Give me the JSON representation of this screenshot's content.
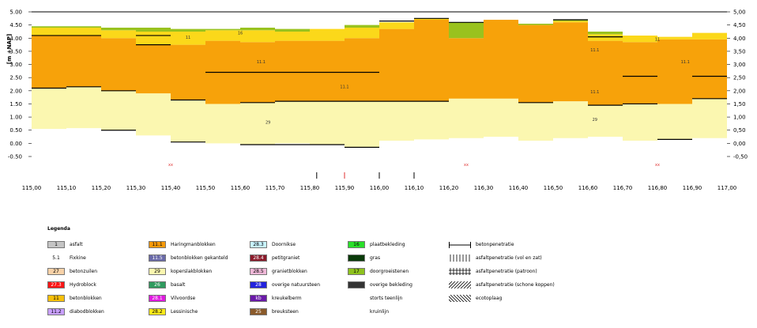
{
  "chart_data": {
    "type": "area",
    "ylabel": "[m +NAP]",
    "y_ticks_left": [
      "5.00",
      "4.50",
      "4.00",
      "3.50",
      "3.00",
      "2.50",
      "2.00",
      "1.50",
      "1.00",
      "0.50",
      "0.00",
      "-0.50"
    ],
    "y_ticks_right": [
      "5,00",
      "4,50",
      "4,00",
      "3,50",
      "3,00",
      "2,50",
      "2,00",
      "1,50",
      "1,00",
      "0,50",
      "0,00",
      "-0,50"
    ],
    "y_values": [
      5.0,
      4.5,
      4.0,
      3.5,
      3.0,
      2.5,
      2.0,
      1.5,
      1.0,
      0.5,
      0.0,
      -0.5
    ],
    "ylim": [
      -0.5,
      5.0
    ],
    "xlim": [
      115.0,
      117.0
    ],
    "x_ticks": [
      "115,00",
      "115,10",
      "115,20",
      "115,30",
      "115,40",
      "115,50",
      "115,60",
      "115,70",
      "115,80",
      "115,90",
      "116,00",
      "116,10",
      "116,20",
      "116,30",
      "116,40",
      "116,50",
      "116,60",
      "116,70",
      "116,80",
      "116,90",
      "117,00"
    ],
    "x_tick_values": [
      115.0,
      115.1,
      115.2,
      115.3,
      115.4,
      115.5,
      115.6,
      115.7,
      115.8,
      115.9,
      116.0,
      116.1,
      116.2,
      116.3,
      116.4,
      116.5,
      116.6,
      116.7,
      116.8,
      116.9,
      117.0
    ],
    "bin_edges": [
      115.0,
      115.1,
      115.2,
      115.3,
      115.4,
      115.5,
      115.6,
      115.7,
      115.8,
      115.9,
      116.0,
      116.1,
      116.2,
      116.3,
      116.4,
      116.5,
      116.6,
      116.7,
      116.8,
      116.9,
      117.0
    ],
    "series": [
      {
        "color": "#fbf7b0",
        "bottom": [
          0.55,
          0.58,
          0.5,
          0.3,
          0.05,
          0.0,
          -0.05,
          0.0,
          -0.05,
          -0.15,
          0.1,
          0.15,
          0.2,
          0.25,
          0.1,
          0.2,
          0.25,
          0.1,
          0.15,
          0.2
        ],
        "top": [
          2.1,
          2.15,
          2.0,
          1.9,
          1.65,
          1.5,
          1.55,
          1.6,
          1.6,
          1.6,
          1.6,
          1.6,
          1.7,
          1.7,
          1.55,
          1.6,
          1.45,
          1.5,
          1.5,
          1.7
        ]
      },
      {
        "color": "#f7a20a",
        "bottom": [
          2.1,
          2.15,
          2.0,
          1.9,
          1.65,
          1.5,
          1.55,
          1.6,
          1.6,
          1.6,
          1.6,
          1.6,
          1.7,
          1.7,
          1.55,
          1.6,
          1.45,
          1.5,
          1.5,
          1.7
        ],
        "top": [
          4.1,
          4.1,
          4.0,
          3.75,
          3.75,
          3.9,
          3.85,
          3.9,
          3.9,
          4.0,
          4.35,
          4.7,
          4.0,
          4.7,
          4.5,
          4.6,
          3.9,
          3.85,
          3.95,
          3.95
        ]
      },
      {
        "color": "#fbd81a",
        "bottom": [
          4.1,
          4.1,
          4.0,
          3.75,
          3.75,
          3.9,
          3.85,
          3.9,
          3.9,
          4.0,
          4.35,
          4.7,
          4.0,
          4.7,
          4.5,
          4.6,
          3.9,
          3.85,
          3.95,
          3.95
        ],
        "top": [
          4.4,
          4.4,
          4.3,
          4.25,
          4.25,
          4.3,
          4.3,
          4.25,
          4.35,
          4.4,
          4.6,
          4.75,
          4.0,
          4.7,
          4.5,
          4.65,
          4.15,
          4.1,
          4.05,
          4.2
        ]
      },
      {
        "color": "#99c21e",
        "bottom": [
          4.4,
          4.4,
          4.3,
          4.25,
          4.25,
          4.3,
          4.3,
          4.25,
          4.35,
          4.4,
          4.6,
          4.75,
          4.0,
          4.7,
          4.5,
          4.65,
          4.15,
          4.1,
          4.05,
          4.2
        ],
        "top": [
          4.45,
          4.45,
          4.4,
          4.4,
          4.35,
          4.35,
          4.4,
          4.35,
          4.35,
          4.5,
          4.6,
          4.75,
          4.6,
          4.7,
          4.55,
          4.7,
          4.25,
          4.1,
          4.05,
          4.2
        ]
      }
    ],
    "steps": [
      {
        "x0": 115.0,
        "x1": 115.1,
        "y": 4.1
      },
      {
        "x0": 115.1,
        "x1": 115.2,
        "y": 4.1
      },
      {
        "x0": 115.3,
        "x1": 115.4,
        "y": 3.75
      },
      {
        "x0": 115.5,
        "x1": 116.0,
        "y": 2.7
      },
      {
        "x0": 116.6,
        "x1": 116.7,
        "y": 4.05
      },
      {
        "x0": 116.7,
        "x1": 116.8,
        "y": 2.55
      },
      {
        "x0": 116.9,
        "x1": 117.0,
        "y": 2.55
      },
      {
        "x0": 115.0,
        "x1": 115.1,
        "y": 2.1
      },
      {
        "x0": 115.1,
        "x1": 115.2,
        "y": 2.15
      },
      {
        "x0": 115.2,
        "x1": 115.3,
        "y": 2.0
      },
      {
        "x0": 115.4,
        "x1": 115.5,
        "y": 1.65
      },
      {
        "x0": 115.6,
        "x1": 115.7,
        "y": 1.55
      },
      {
        "x0": 115.7,
        "x1": 116.0,
        "y": 1.6
      },
      {
        "x0": 116.0,
        "x1": 116.2,
        "y": 1.6
      },
      {
        "x0": 116.4,
        "x1": 116.5,
        "y": 1.55
      },
      {
        "x0": 116.6,
        "x1": 116.7,
        "y": 1.45
      },
      {
        "x0": 116.7,
        "x1": 116.8,
        "y": 1.5
      },
      {
        "x0": 116.9,
        "x1": 117.0,
        "y": 1.7
      },
      {
        "x0": 115.2,
        "x1": 115.3,
        "y": 0.5
      },
      {
        "x0": 115.4,
        "x1": 115.5,
        "y": 0.05
      },
      {
        "x0": 115.6,
        "x1": 115.7,
        "y": -0.05
      },
      {
        "x0": 115.7,
        "x1": 115.9,
        "y": -0.05
      },
      {
        "x0": 115.9,
        "x1": 116.0,
        "y": -0.15
      },
      {
        "x0": 116.8,
        "x1": 116.9,
        "y": 0.15
      },
      {
        "x0": 116.0,
        "x1": 116.1,
        "y": 4.65
      },
      {
        "x0": 116.1,
        "x1": 116.2,
        "y": 4.75
      },
      {
        "x0": 116.2,
        "x1": 116.3,
        "y": 4.6
      },
      {
        "x0": 116.5,
        "x1": 116.6,
        "y": 4.7
      },
      {
        "x0": 115.3,
        "x1": 115.4,
        "y": 4.1
      }
    ],
    "markers": [
      {
        "x": 115.82,
        "color": "#000"
      },
      {
        "x": 115.9,
        "color": "#e03030"
      },
      {
        "x": 116.0,
        "color": "#000"
      },
      {
        "x": 116.1,
        "color": "#000"
      }
    ],
    "annotations": [
      {
        "x": 115.66,
        "y": 3.05,
        "text": "11.1"
      },
      {
        "x": 115.45,
        "y": 3.98,
        "text": "11"
      },
      {
        "x": 115.6,
        "y": 4.14,
        "text": "16"
      },
      {
        "x": 115.9,
        "y": 2.1,
        "text": "11.1"
      },
      {
        "x": 115.68,
        "y": 0.75,
        "text": "29"
      },
      {
        "x": 116.62,
        "y": 3.5,
        "text": "11.1"
      },
      {
        "x": 116.62,
        "y": 1.9,
        "text": "11.1"
      },
      {
        "x": 116.62,
        "y": 0.85,
        "text": "29"
      },
      {
        "x": 116.88,
        "y": 3.05,
        "text": "11.1"
      },
      {
        "x": 116.8,
        "y": 3.9,
        "text": "11"
      }
    ],
    "red_labels": [
      {
        "x": 115.4,
        "text": "xx"
      },
      {
        "x": 116.25,
        "text": "xx"
      },
      {
        "x": 116.8,
        "text": "xx"
      }
    ]
  },
  "legend": {
    "title": "Legenda",
    "columns": [
      [
        {
          "code": "1",
          "label": "asfalt",
          "color": "#c4c4c4"
        },
        {
          "code": "5.1",
          "label": "Fixkine",
          "color": "#ffffff"
        },
        {
          "code": "27",
          "label": "betonzuilen",
          "color": "#f8d2a8"
        },
        {
          "code": "27.3",
          "label": "Hydroblock",
          "color": "#ff1414"
        },
        {
          "code": "11",
          "label": "betonblokken",
          "color": "#f7c00a"
        },
        {
          "code": "11.2",
          "label": "diabodblokken",
          "color": "#c9a0ff"
        }
      ],
      [
        {
          "code": "11.1",
          "label": "Haringmanblokken",
          "color": "#f79a0a"
        },
        {
          "code": "11.5",
          "label": "betonblokken gekanteld",
          "color": "#6a6aa8"
        },
        {
          "code": "29",
          "label": "koperslakblokken",
          "color": "#fbf7b0"
        },
        {
          "code": "26",
          "label": "basalt",
          "color": "#2f9a5e"
        },
        {
          "code": "28.1",
          "label": "Vilvoordse",
          "color": "#e01ae0"
        },
        {
          "code": "28.2",
          "label": "Lessinische",
          "color": "#fbea1a"
        }
      ],
      [
        {
          "code": "28.3",
          "label": "Doornikse",
          "color": "#c8f4ff"
        },
        {
          "code": "28.4",
          "label": "petitgraniet",
          "color": "#8a1a2a"
        },
        {
          "code": "28.5",
          "label": "granietblokken",
          "color": "#f0b8d8"
        },
        {
          "code": "28",
          "label": "overige natuursteen",
          "color": "#2222dd"
        },
        {
          "code": "kb",
          "label": "kreukelberm",
          "color": "#6a1aa8"
        },
        {
          "code": "25",
          "label": "breuksteen",
          "color": "#8a5a2a"
        }
      ],
      [
        {
          "code": "16",
          "label": "plaatbekleding",
          "color": "#2ae02a"
        },
        {
          "code": "",
          "label": "gras",
          "color": "#0a3a0a"
        },
        {
          "code": "17",
          "label": "doorgroeistenen",
          "color": "#8ec21e"
        },
        {
          "code": "",
          "label": "overige bekleding",
          "color": "#333333"
        },
        {
          "code": "",
          "label": "storts teenlijn",
          "color": "#ffffff"
        },
        {
          "code": "",
          "label": "kruinlijn",
          "color": "#ffffff"
        }
      ]
    ],
    "symbols": [
      {
        "icon": "hline-icon",
        "label": "betonpenetratie"
      },
      {
        "icon": "vertical-hatch-icon",
        "label": "asfaltpenetratie (vol en zat)"
      },
      {
        "icon": "grid-hatch-icon",
        "label": "asfaltpenetratie (patroon)"
      },
      {
        "icon": "diagonal-hatch-icon",
        "label": "asfaltpenetratie (schone koppen)"
      },
      {
        "icon": "backdiagonal-hatch-icon",
        "label": "ecotoplaag"
      }
    ]
  }
}
